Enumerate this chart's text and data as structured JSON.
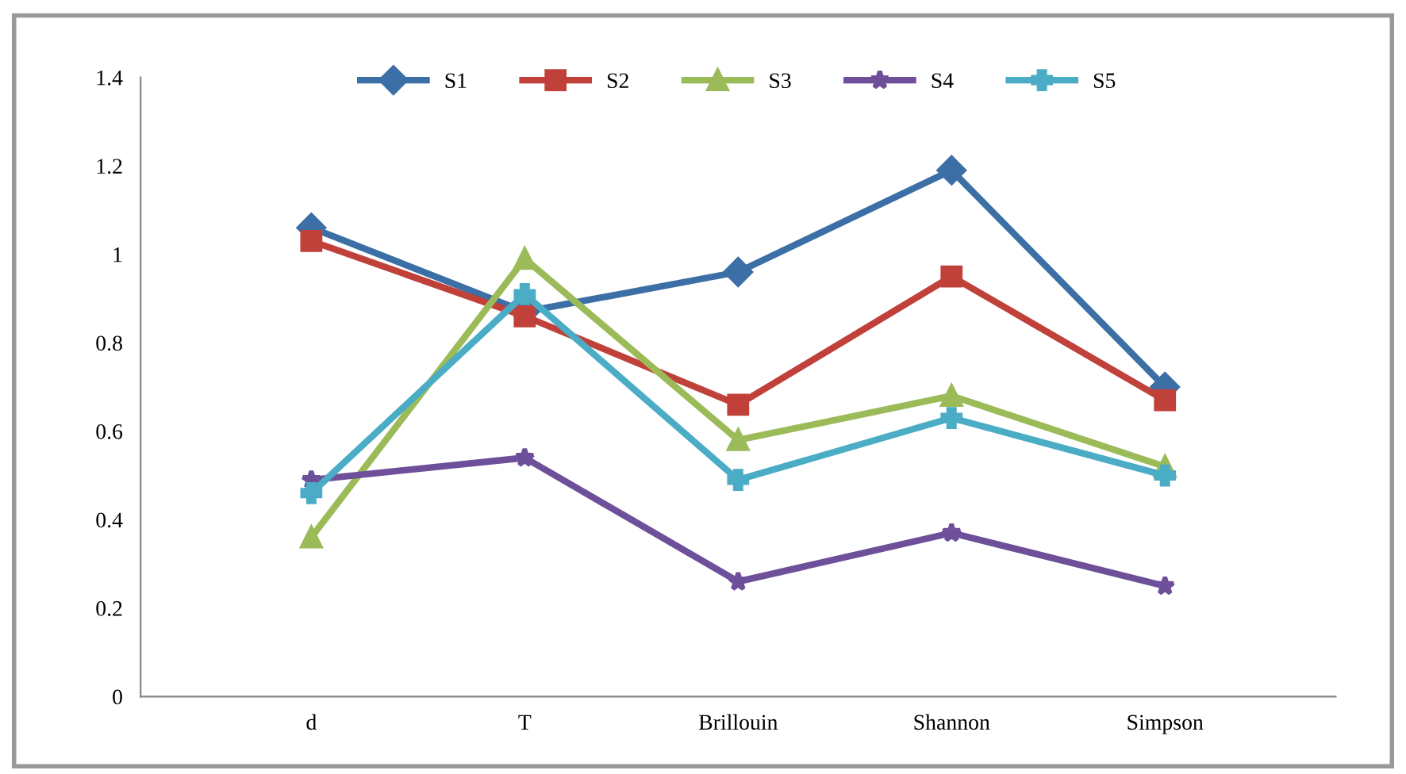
{
  "chart_data": {
    "type": "line",
    "categories": [
      "d",
      "T",
      "Brillouin",
      "Shannon",
      "Simpson"
    ],
    "series": [
      {
        "name": "S1",
        "color": "#3b6fa6",
        "marker": "diamond",
        "values": [
          1.06,
          0.87,
          0.96,
          1.19,
          0.7
        ]
      },
      {
        "name": "S2",
        "color": "#c0413a",
        "marker": "square",
        "values": [
          1.03,
          0.86,
          0.66,
          0.95,
          0.67
        ]
      },
      {
        "name": "S3",
        "color": "#9bbb59",
        "marker": "triangle",
        "values": [
          0.36,
          0.99,
          0.58,
          0.68,
          0.52
        ]
      },
      {
        "name": "S4",
        "color": "#6e4f9a",
        "marker": "star",
        "values": [
          0.49,
          0.54,
          0.26,
          0.37,
          0.25
        ]
      },
      {
        "name": "S5",
        "color": "#4bacc6",
        "marker": "cross",
        "values": [
          0.46,
          0.91,
          0.49,
          0.63,
          0.5
        ]
      }
    ],
    "ylim": [
      0,
      1.4
    ],
    "yticks": [
      0,
      0.2,
      0.4,
      0.6,
      0.8,
      1,
      1.2,
      1.4
    ],
    "grid": false,
    "legend": "top",
    "line_style": "solid"
  }
}
